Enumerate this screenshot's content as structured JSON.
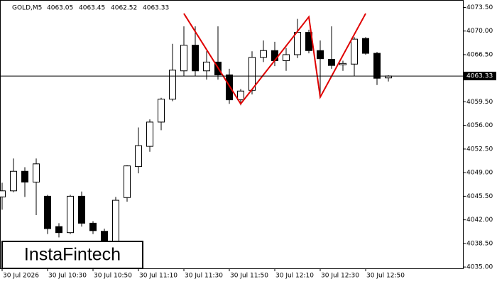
{
  "chart_data": {
    "type": "candlestick",
    "title": "GOLD,M5",
    "categories": [
      "30 Jul 2026",
      null,
      null,
      null,
      "30 Jul 10:30",
      null,
      null,
      null,
      "30 Jul 10:50",
      null,
      null,
      null,
      "30 Jul 11:10",
      null,
      null,
      null,
      "30 Jul 11:30",
      null,
      null,
      null,
      "30 Jul 11:50",
      null,
      null,
      null,
      "30 Jul 12:10",
      null,
      null,
      null,
      "30 Jul 12:30",
      null,
      null,
      null,
      "30 Jul 12:50",
      null,
      null
    ],
    "open": [
      4045.4,
      4046.3,
      4049.2,
      4047.6,
      4045.5,
      4041.0,
      4040.1,
      4045.5,
      4041.5,
      4040.3,
      4038.3,
      4045.3,
      4049.9,
      4052.9,
      4056.5,
      4059.9,
      4064.1,
      4067.9,
      4064.1,
      4065.4,
      4063.5,
      4059.8,
      4061.2,
      4066.1,
      4067.1,
      4065.6,
      4066.5,
      4069.8,
      4067.1,
      4065.8,
      4065.0,
      4065.1,
      4068.9,
      4066.7,
      4063.05
    ],
    "high": [
      4047.5,
      4051.1,
      4049.8,
      4051.1,
      4045.7,
      4041.5,
      4045.7,
      4046.2,
      4041.8,
      4040.7,
      4045.4,
      4050.1,
      4055.7,
      4056.9,
      4060.1,
      4068.1,
      4070.7,
      4070.7,
      4067.0,
      4070.7,
      4064.4,
      4061.4,
      4067.0,
      4068.6,
      4068.4,
      4067.5,
      4071.8,
      4070.2,
      4068.6,
      4070.7,
      4065.6,
      4069.1,
      4069.1,
      4066.9,
      4063.45
    ],
    "low": [
      4043.5,
      4046.1,
      4045.4,
      4042.7,
      4039.9,
      4039.4,
      4039.9,
      4041.0,
      4039.9,
      4038.3,
      4037.5,
      4044.7,
      4048.9,
      4052.1,
      4055.3,
      4059.6,
      4063.3,
      4063.3,
      4062.8,
      4062.8,
      4059.2,
      4059.0,
      4060.6,
      4065.4,
      4064.8,
      4064.1,
      4066.0,
      4066.7,
      4060.1,
      4064.4,
      4064.1,
      4063.3,
      4066.5,
      4062.0,
      4062.52
    ],
    "close": [
      4046.3,
      4049.2,
      4047.6,
      4050.3,
      4040.7,
      4040.1,
      4045.5,
      4041.5,
      4040.4,
      4038.8,
      4044.9,
      4050.0,
      4053.0,
      4056.5,
      4059.9,
      4064.2,
      4067.9,
      4064.1,
      4065.4,
      4063.5,
      4059.8,
      4061.1,
      4066.1,
      4067.1,
      4065.6,
      4066.5,
      4069.8,
      4067.1,
      4065.9,
      4064.9,
      4065.2,
      4068.8,
      4066.7,
      4063.0,
      4063.33
    ],
    "up_color": "#ffffff",
    "down_color": "#000000",
    "pattern": {
      "color": "#e00000",
      "indices": [
        16,
        21,
        27,
        28,
        32
      ],
      "values": [
        4072.6,
        4059.2,
        4072.1,
        4060.2,
        4072.6
      ]
    },
    "ylim": [
      4034.8,
      4074.5
    ],
    "yticks": [
      {
        "value": 4035.0,
        "label": "4035.00"
      },
      {
        "value": 4038.5,
        "label": "4038.50"
      },
      {
        "value": 4042.0,
        "label": "4042.00"
      },
      {
        "value": 4045.5,
        "label": "4045.50"
      },
      {
        "value": 4049.0,
        "label": "4049.00"
      },
      {
        "value": 4052.5,
        "label": "4052.50"
      },
      {
        "value": 4056.0,
        "label": "4056.00"
      },
      {
        "value": 4059.5,
        "label": "4059.50"
      },
      {
        "value": 4066.5,
        "label": "4066.50"
      },
      {
        "value": 4070.0,
        "label": "4070.00"
      },
      {
        "value": 4073.5,
        "label": "4073.50"
      }
    ],
    "watermark": "InstaFintech"
  }
}
